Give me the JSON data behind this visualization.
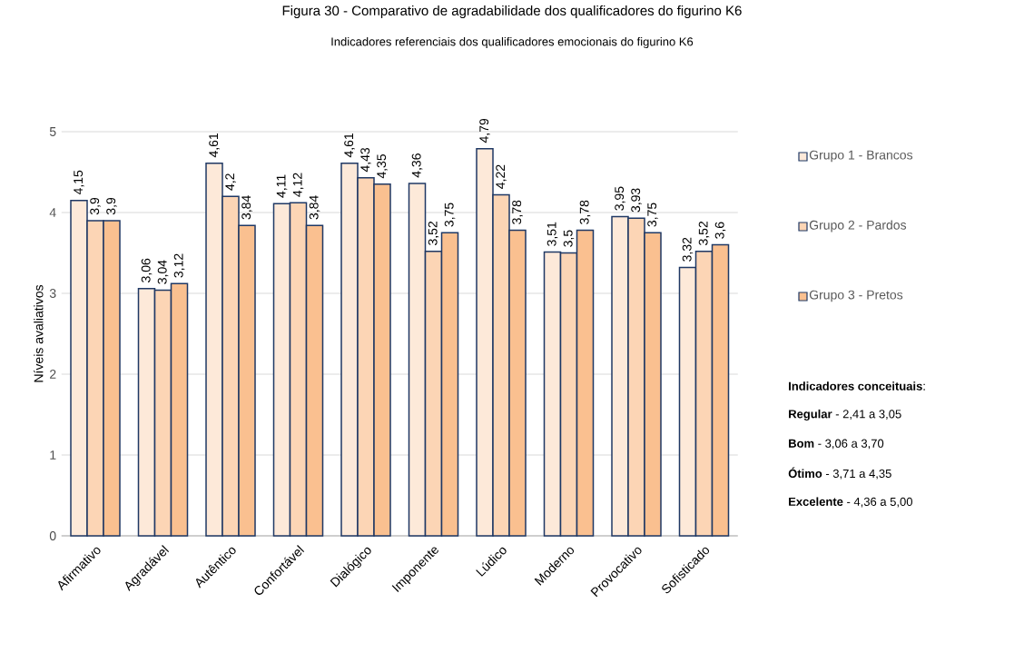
{
  "chart_data": {
    "type": "bar",
    "title": "Figura 30 - Comparativo de agradabilidade dos qualificadores do figurino K6",
    "subtitle": "Indicadores referenciais dos qualificadores emocionais do figurino K6",
    "ylabel": "Níveis  avaliativos",
    "categories": [
      "Afirmativo",
      "Agradável",
      "Autêntico",
      "Confortável",
      "Dialógico",
      "Imponente",
      "Lúdico",
      "Moderno",
      "Provocativo",
      "Sofisticado"
    ],
    "series": [
      {
        "name": "Grupo 1 - Brancos",
        "color": "#fde9d9",
        "values": [
          4.15,
          3.06,
          4.61,
          4.11,
          4.61,
          4.36,
          4.79,
          3.51,
          3.95,
          3.32
        ],
        "value_labels": [
          "4,15",
          "3,06",
          "4,61",
          "4,11",
          "4,61",
          "4,36",
          "4,79",
          "3,51",
          "3,95",
          "3,32"
        ]
      },
      {
        "name": "Grupo 2 - Pardos",
        "color": "#fcd5b5",
        "values": [
          3.9,
          3.04,
          4.2,
          4.12,
          4.43,
          3.52,
          4.22,
          3.5,
          3.93,
          3.52
        ],
        "value_labels": [
          "3,9",
          "3,04",
          "4,2",
          "4,12",
          "4,43",
          "3,52",
          "4,22",
          "3,5",
          "3,93",
          "3,52"
        ]
      },
      {
        "name": "Grupo 3 - Pretos",
        "color": "#fac090",
        "values": [
          3.9,
          3.12,
          3.84,
          3.84,
          4.35,
          3.75,
          3.78,
          3.78,
          3.75,
          3.6
        ],
        "value_labels": [
          "3,9",
          "3,12",
          "3,84",
          "3,84",
          "4,35",
          "3,75",
          "3,78",
          "3,78",
          "3,75",
          "3,6"
        ]
      }
    ],
    "ylim": [
      0,
      5
    ],
    "yticks": [
      0,
      1,
      2,
      3,
      4,
      5
    ],
    "grid": "y",
    "legend": "right",
    "annotations": [
      "**Indicadores conceituais**:",
      "**Regular** - 2,41 a 3,05",
      "**Bom** - 3,06 a 3,70",
      "**Ótimo** - 3,71 a 4,35",
      "**Excelente** - 4,36 a 5,00"
    ]
  }
}
